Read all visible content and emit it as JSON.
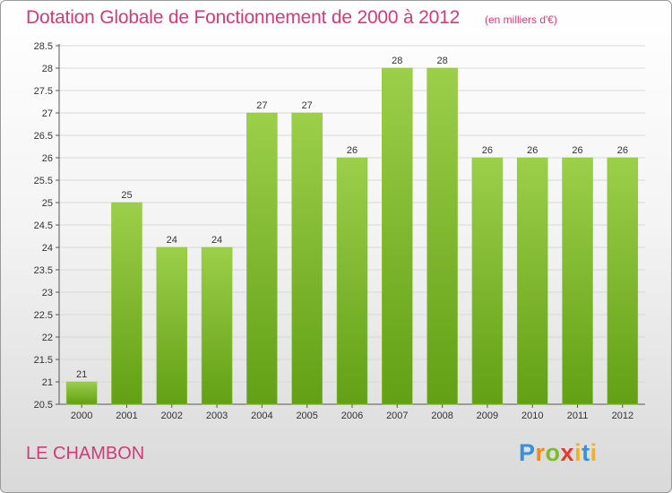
{
  "header": {
    "title": "Dotation Globale de Fonctionnement de 2000 à 2012",
    "subtitle": "(en milliers d'€)"
  },
  "footer": {
    "commune": "LE CHAMBON",
    "brand": "Proxiti"
  },
  "colors": {
    "text_accent": "#d23a78",
    "bar_top": "#9ccf4a",
    "bar_bottom": "#62a015",
    "grid": "#d8d8d8"
  },
  "chart_data": {
    "type": "bar",
    "categories": [
      "2000",
      "2001",
      "2002",
      "2003",
      "2004",
      "2005",
      "2006",
      "2007",
      "2008",
      "2009",
      "2010",
      "2011",
      "2012"
    ],
    "values": [
      21,
      25,
      24,
      24,
      27,
      27,
      26,
      28,
      28,
      26,
      26,
      26,
      26
    ],
    "data_labels": [
      "21",
      "25",
      "24",
      "24",
      "27",
      "27",
      "26",
      "28",
      "28",
      "26",
      "26",
      "26",
      "26"
    ],
    "title": "Dotation Globale de Fonctionnement de 2000 à 2012",
    "xlabel": "",
    "ylabel": "",
    "ylim": [
      20.5,
      28.5
    ],
    "yticks": [
      "20.5",
      "21",
      "21.5",
      "22",
      "22.5",
      "23",
      "23.5",
      "24",
      "24.5",
      "25",
      "25.5",
      "26",
      "26.5",
      "27",
      "27.5",
      "28",
      "28.5"
    ],
    "grid": true,
    "legend": "none"
  }
}
